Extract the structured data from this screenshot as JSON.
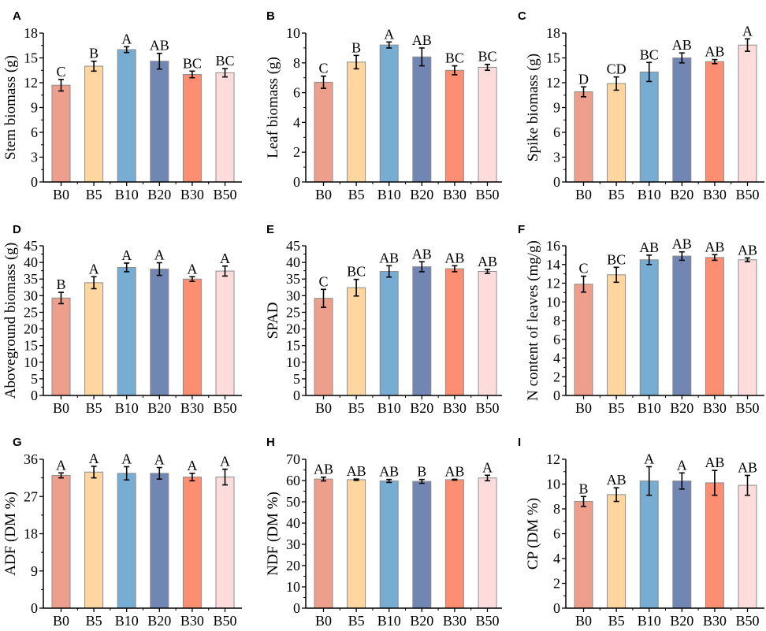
{
  "figure": {
    "treatments": [
      "B0",
      "B5",
      "B10",
      "B20",
      "B30",
      "B50"
    ],
    "treatment_colors": [
      "#EE9F8C",
      "#FFD6A0",
      "#78ADD3",
      "#7286B4",
      "#FD8E72",
      "#FFDCDC"
    ],
    "bar_edge_color": "#8C8C8C"
  },
  "chart_data": [
    {
      "panel": "A",
      "type": "bar",
      "categories": [
        "B0",
        "B5",
        "B10",
        "B20",
        "B30",
        "B50"
      ],
      "values": [
        11.7,
        14.0,
        16.0,
        14.6,
        13.0,
        13.2
      ],
      "errors": [
        0.7,
        0.6,
        0.35,
        0.95,
        0.4,
        0.5
      ],
      "significance": [
        "C",
        "B",
        "A",
        "AB",
        "BC",
        "BC"
      ],
      "xlabel": "",
      "ylabel": "Stem biomass (g)",
      "ylim": [
        0,
        18
      ],
      "yticks": [
        0,
        3,
        6,
        9,
        12,
        15,
        18
      ]
    },
    {
      "panel": "B",
      "type": "bar",
      "categories": [
        "B0",
        "B5",
        "B10",
        "B20",
        "B30",
        "B50"
      ],
      "values": [
        6.7,
        8.05,
        9.2,
        8.4,
        7.5,
        7.7
      ],
      "errors": [
        0.41,
        0.45,
        0.2,
        0.6,
        0.3,
        0.2
      ],
      "significance": [
        "C",
        "B",
        "A",
        "AB",
        "BC",
        "BC"
      ],
      "xlabel": "",
      "ylabel": "Leaf biomass (g)",
      "ylim": [
        0,
        10
      ],
      "yticks": [
        0,
        2,
        4,
        6,
        8,
        10
      ]
    },
    {
      "panel": "C",
      "type": "bar",
      "categories": [
        "B0",
        "B5",
        "B10",
        "B20",
        "B30",
        "B50"
      ],
      "values": [
        10.9,
        11.9,
        13.3,
        15.0,
        14.55,
        16.55
      ],
      "errors": [
        0.6,
        0.8,
        1.15,
        0.6,
        0.25,
        0.75
      ],
      "significance": [
        "D",
        "CD",
        "BC",
        "AB",
        "AB",
        "A"
      ],
      "xlabel": "",
      "ylabel": "Spike biomass (g)",
      "ylim": [
        0,
        18
      ],
      "yticks": [
        0,
        3,
        6,
        9,
        12,
        15,
        18
      ]
    },
    {
      "panel": "D",
      "type": "bar",
      "categories": [
        "B0",
        "B5",
        "B10",
        "B20",
        "B30",
        "B50"
      ],
      "values": [
        29.3,
        33.9,
        38.5,
        38.0,
        35.0,
        37.4
      ],
      "errors": [
        1.7,
        1.8,
        1.3,
        1.9,
        0.7,
        1.5
      ],
      "significance": [
        "B",
        "A",
        "A",
        "A",
        "A",
        "A"
      ],
      "xlabel": "",
      "ylabel": "Aboveground biomass (g)",
      "ylim": [
        0,
        45
      ],
      "yticks": [
        0,
        5,
        10,
        15,
        20,
        25,
        30,
        35,
        40,
        45
      ]
    },
    {
      "panel": "E",
      "type": "bar",
      "categories": [
        "B0",
        "B5",
        "B10",
        "B20",
        "B30",
        "B50"
      ],
      "values": [
        29.2,
        32.4,
        37.3,
        38.7,
        38.1,
        37.3
      ],
      "errors": [
        2.7,
        2.5,
        1.7,
        1.5,
        0.9,
        0.6
      ],
      "significance": [
        "C",
        "BC",
        "AB",
        "AB",
        "AB",
        "AB"
      ],
      "xlabel": "",
      "ylabel": "SPAD",
      "ylim": [
        0,
        45
      ],
      "yticks": [
        0,
        5,
        10,
        15,
        20,
        25,
        30,
        35,
        40,
        45
      ]
    },
    {
      "panel": "F",
      "type": "bar",
      "categories": [
        "B0",
        "B5",
        "B10",
        "B20",
        "B30",
        "B50"
      ],
      "values": [
        11.9,
        12.9,
        14.5,
        14.9,
        14.75,
        14.5
      ],
      "errors": [
        0.85,
        0.8,
        0.5,
        0.45,
        0.3,
        0.2
      ],
      "significance": [
        "C",
        "BC",
        "AB",
        "AB",
        "AB",
        "AB"
      ],
      "xlabel": "",
      "ylabel": "N content of leaves (mg/g)",
      "ylim": [
        0,
        16
      ],
      "yticks": [
        0,
        2,
        4,
        6,
        8,
        10,
        12,
        14,
        16
      ]
    },
    {
      "panel": "G",
      "type": "bar",
      "categories": [
        "B0",
        "B5",
        "B10",
        "B20",
        "B30",
        "B50"
      ],
      "values": [
        32.1,
        32.9,
        32.6,
        32.6,
        31.7,
        31.7
      ],
      "errors": [
        0.6,
        1.4,
        1.6,
        1.4,
        0.9,
        1.9
      ],
      "significance": [
        "A",
        "A",
        "A",
        "A",
        "A",
        "A"
      ],
      "xlabel": "",
      "ylabel": "ADF (DM %)",
      "ylim": [
        0,
        36
      ],
      "yticks": [
        0,
        9,
        18,
        27,
        36
      ]
    },
    {
      "panel": "H",
      "type": "bar",
      "categories": [
        "B0",
        "B5",
        "B10",
        "B20",
        "B30",
        "B50"
      ],
      "values": [
        60.7,
        60.4,
        59.8,
        59.6,
        60.4,
        61.2
      ],
      "errors": [
        0.9,
        0.3,
        0.7,
        0.9,
        0.2,
        1.3
      ],
      "significance": [
        "AB",
        "AB",
        "AB",
        "B",
        "AB",
        "A"
      ],
      "xlabel": "",
      "ylabel": "NDF (DM %)",
      "ylim": [
        0,
        70
      ],
      "yticks": [
        0,
        10,
        20,
        30,
        40,
        50,
        60,
        70
      ]
    },
    {
      "panel": "I",
      "type": "bar",
      "categories": [
        "B0",
        "B5",
        "B10",
        "B20",
        "B30",
        "B50"
      ],
      "values": [
        8.6,
        9.15,
        10.25,
        10.25,
        10.1,
        9.9
      ],
      "errors": [
        0.4,
        0.55,
        1.15,
        0.65,
        1.0,
        0.8
      ],
      "significance": [
        "B",
        "AB",
        "A",
        "A",
        "AB",
        "AB"
      ],
      "xlabel": "",
      "ylabel": "CP (DM %)",
      "ylim": [
        0,
        12
      ],
      "yticks": [
        0,
        2,
        4,
        6,
        8,
        10,
        12
      ]
    }
  ]
}
